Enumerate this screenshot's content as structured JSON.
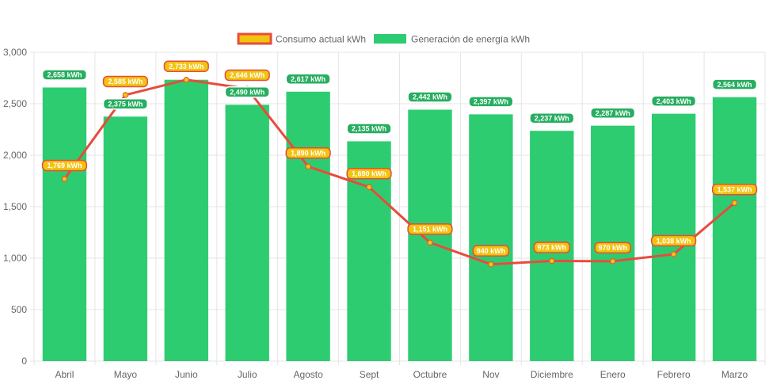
{
  "chart_data": {
    "type": "bar",
    "categories": [
      "Abril",
      "Mayo",
      "Junio",
      "Julio",
      "Agosto",
      "Sept",
      "Octubre",
      "Nov",
      "Diciembre",
      "Enero",
      "Febrero",
      "Marzo"
    ],
    "series": [
      {
        "name": "Consumo actual kWh",
        "render": "line",
        "color": "#e74c3c",
        "point_color": "#f1c40f",
        "values": [
          1769,
          2585,
          2733,
          2646,
          1890,
          1690,
          1151,
          940,
          973,
          970,
          1038,
          1537
        ],
        "labels": [
          "1,769 kWh",
          "2,585 kWh",
          "2,733 kWh",
          "2,646 kWh",
          "1,890 kWh",
          "1,690 kWh",
          "1,151 kWh",
          "940 kWh",
          "973 kWh",
          "970 kWh",
          "1,038 kWh",
          "1,537 kWh"
        ]
      },
      {
        "name": "Generación de energía kWh",
        "render": "bar",
        "color": "#2ecc71",
        "values": [
          2658,
          2375,
          2733,
          2490,
          2617,
          2135,
          2442,
          2397,
          2237,
          2287,
          2403,
          2564
        ],
        "labels": [
          "2,658 kWh",
          "2,375 kWh",
          "2,733 kWh",
          "2,490 kWh",
          "2,617 kWh",
          "2,135 kWh",
          "2,442 kWh",
          "2,397 kWh",
          "2,237 kWh",
          "2,287 kWh",
          "2,403 kWh",
          "2,564 kWh"
        ]
      }
    ],
    "y_ticks": [
      "0",
      "500",
      "1,000",
      "1,500",
      "2,000",
      "2,500",
      "3,000"
    ],
    "ylim": [
      0,
      3000
    ],
    "grid": true,
    "legend_position": "top"
  }
}
